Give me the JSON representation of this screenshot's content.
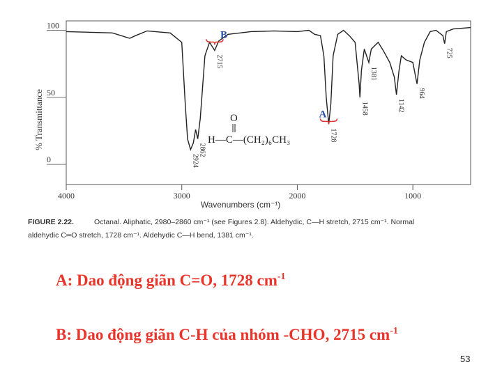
{
  "chart_data": {
    "type": "line",
    "ylabel": "% Transmittance",
    "xlabel": "Wavenumbers (cm⁻¹)",
    "xlim": [
      4000,
      500
    ],
    "ylim": [
      -15,
      107
    ],
    "xticks": [
      4000,
      3000,
      2000,
      1000
    ],
    "yticks": [
      0,
      50,
      100
    ],
    "color": "#222222",
    "x": [
      4000,
      3600,
      3450,
      3400,
      3300,
      3100,
      3000,
      2970,
      2950,
      2924,
      2900,
      2880,
      2862,
      2840,
      2800,
      2760,
      2715,
      2680,
      2600,
      2400,
      2200,
      2000,
      1900,
      1850,
      1800,
      1770,
      1750,
      1728,
      1710,
      1690,
      1650,
      1600,
      1550,
      1500,
      1465,
      1458,
      1445,
      1420,
      1381,
      1360,
      1300,
      1250,
      1200,
      1160,
      1142,
      1120,
      1100,
      1060,
      1000,
      964,
      940,
      900,
      850,
      800,
      740,
      725,
      710,
      650,
      500
    ],
    "values": [
      99,
      98,
      94,
      96,
      99.5,
      98,
      91,
      45,
      19,
      11,
      16,
      26,
      19,
      34,
      81,
      91,
      85,
      92,
      97,
      99,
      99.5,
      99,
      100,
      97,
      96,
      81,
      50,
      30,
      45,
      81,
      97,
      100,
      96,
      91,
      60,
      50,
      70,
      86,
      76,
      86,
      91,
      84,
      76,
      65,
      52,
      70,
      81,
      78,
      76,
      60,
      78,
      91,
      99,
      100,
      96,
      90,
      99,
      101,
      102
    ],
    "annotations": [
      {
        "text": "2924",
        "x": 2924
      },
      {
        "text": "2862",
        "x": 2862
      },
      {
        "text": "2715",
        "x": 2715
      },
      {
        "text": "1728",
        "x": 1728
      },
      {
        "text": "1458",
        "x": 1458
      },
      {
        "text": "1381",
        "x": 1381
      },
      {
        "text": "1142",
        "x": 1142
      },
      {
        "text": "964",
        "x": 964
      },
      {
        "text": "725",
        "x": 725
      }
    ],
    "markers": [
      {
        "label": "B",
        "x": 2715
      },
      {
        "label": "A",
        "x": 1728
      }
    ],
    "structure": {
      "top": "O",
      "main": "H—C—(CH₂)₆CH₃"
    }
  },
  "caption": {
    "label": "FIGURE 2.22.",
    "line1": "Octanal. Aliphatic, 2980–2860 cm⁻¹ (see Figures 2.8). Aldehydic, C—H stretch, 2715 cm⁻¹. Normal",
    "line2": "aldehydic C═O stretch, 1728 cm⁻¹. Aldehydic C—H bend, 1381 cm⁻¹."
  },
  "slide": {
    "lines": [
      {
        "text": "A: Dao động giãn C=O, 1728 cm",
        "sup": "-1"
      },
      {
        "text": "B: Dao động giãn C-H của nhóm -CHO, 2715 cm",
        "sup": "-1"
      }
    ],
    "page": "53"
  }
}
